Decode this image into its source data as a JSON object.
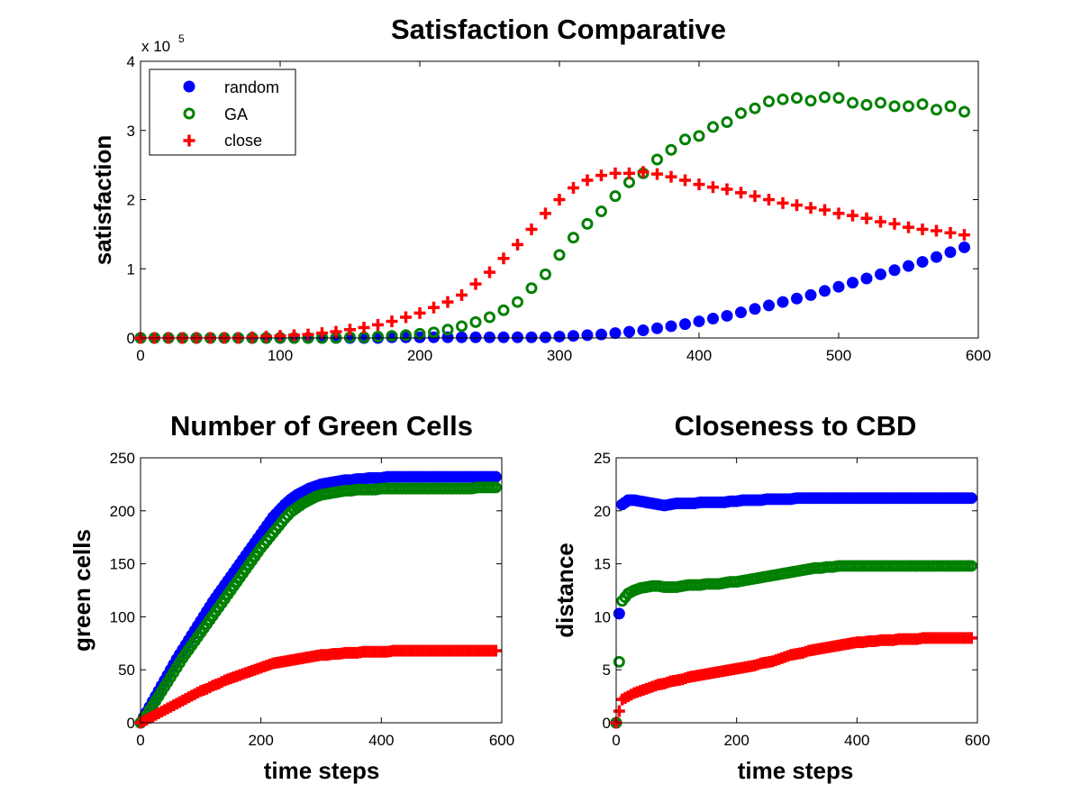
{
  "figure": {
    "colors": {
      "random": "#0000ff",
      "GA": "#008000",
      "close": "#ff0000"
    },
    "markers": {
      "random": "filled-circle",
      "GA": "open-circle",
      "close": "plus"
    }
  },
  "chart_data": [
    {
      "type": "scatter",
      "title": "Satisfaction Comparative",
      "xlabel": "",
      "ylabel": "satisfaction",
      "exponent_label": "x 10",
      "exponent_power": "5",
      "xlim": [
        0,
        600
      ],
      "ylim": [
        0,
        4
      ],
      "xticks": [
        "0",
        "100",
        "200",
        "300",
        "400",
        "500",
        "600"
      ],
      "yticks": [
        "0",
        "1",
        "2",
        "3",
        "4"
      ],
      "legend": {
        "position": "top-left",
        "entries": [
          "random",
          "GA",
          "close"
        ]
      },
      "x": [
        0,
        10,
        20,
        30,
        40,
        50,
        60,
        70,
        80,
        90,
        100,
        110,
        120,
        130,
        140,
        150,
        160,
        170,
        180,
        190,
        200,
        210,
        220,
        230,
        240,
        250,
        260,
        270,
        280,
        290,
        300,
        310,
        320,
        330,
        340,
        350,
        360,
        370,
        380,
        390,
        400,
        410,
        420,
        430,
        440,
        450,
        460,
        470,
        480,
        490,
        500,
        510,
        520,
        530,
        540,
        550,
        560,
        570,
        580,
        590
      ],
      "series": [
        {
          "name": "random",
          "values": [
            0,
            0,
            0,
            0,
            0,
            0,
            0,
            0,
            0,
            0,
            0,
            0,
            0,
            0,
            0,
            0,
            0,
            0,
            0.01,
            0.01,
            0.01,
            0.01,
            0.01,
            0.01,
            0.01,
            0.01,
            0.01,
            0.01,
            0.01,
            0.01,
            0.02,
            0.03,
            0.04,
            0.05,
            0.07,
            0.09,
            0.11,
            0.14,
            0.17,
            0.2,
            0.24,
            0.28,
            0.32,
            0.37,
            0.42,
            0.47,
            0.52,
            0.57,
            0.62,
            0.68,
            0.74,
            0.8,
            0.86,
            0.92,
            0.98,
            1.04,
            1.1,
            1.17,
            1.24,
            1.31
          ]
        },
        {
          "name": "GA",
          "values": [
            0,
            0,
            0,
            0,
            0,
            0,
            0,
            0,
            0,
            0,
            0,
            0,
            0,
            0,
            0,
            0.01,
            0.01,
            0.02,
            0.03,
            0.04,
            0.06,
            0.08,
            0.12,
            0.17,
            0.23,
            0.3,
            0.4,
            0.52,
            0.72,
            0.92,
            1.2,
            1.45,
            1.65,
            1.83,
            2.05,
            2.25,
            2.38,
            2.58,
            2.72,
            2.87,
            2.92,
            3.05,
            3.12,
            3.25,
            3.32,
            3.42,
            3.45,
            3.47,
            3.43,
            3.48,
            3.47,
            3.4,
            3.37,
            3.4,
            3.35,
            3.35,
            3.38,
            3.3,
            3.35,
            3.27
          ]
        },
        {
          "name": "close",
          "values": [
            0,
            0,
            0,
            0,
            0,
            0,
            0,
            0,
            0.01,
            0.02,
            0.03,
            0.04,
            0.05,
            0.07,
            0.09,
            0.12,
            0.15,
            0.19,
            0.24,
            0.3,
            0.36,
            0.44,
            0.52,
            0.62,
            0.78,
            0.95,
            1.15,
            1.35,
            1.57,
            1.8,
            2.0,
            2.17,
            2.28,
            2.35,
            2.38,
            2.38,
            2.4,
            2.37,
            2.33,
            2.28,
            2.22,
            2.18,
            2.15,
            2.1,
            2.05,
            2.0,
            1.95,
            1.92,
            1.88,
            1.85,
            1.8,
            1.77,
            1.73,
            1.68,
            1.65,
            1.6,
            1.57,
            1.55,
            1.52,
            1.49
          ]
        }
      ]
    },
    {
      "type": "scatter",
      "title": "Number of Green Cells",
      "xlabel": "time steps",
      "ylabel": "green cells",
      "xlim": [
        0,
        600
      ],
      "ylim": [
        0,
        250
      ],
      "xticks": [
        "0",
        "200",
        "400",
        "600"
      ],
      "yticks": [
        "0",
        "50",
        "100",
        "150",
        "200",
        "250"
      ],
      "x": [
        0,
        10,
        20,
        30,
        40,
        50,
        60,
        70,
        80,
        90,
        100,
        110,
        120,
        130,
        140,
        150,
        160,
        170,
        180,
        190,
        200,
        210,
        220,
        230,
        240,
        250,
        260,
        270,
        280,
        290,
        300,
        310,
        320,
        330,
        340,
        350,
        360,
        370,
        380,
        390,
        400,
        410,
        420,
        430,
        440,
        450,
        460,
        470,
        480,
        490,
        500,
        510,
        520,
        530,
        540,
        550,
        560,
        570,
        580,
        590
      ],
      "series": [
        {
          "name": "random",
          "values": [
            0,
            10,
            20,
            30,
            40,
            50,
            60,
            69,
            78,
            87,
            96,
            105,
            114,
            122,
            130,
            138,
            146,
            154,
            162,
            170,
            178,
            186,
            194,
            200,
            206,
            211,
            215,
            218,
            221,
            223,
            225,
            226,
            227,
            228,
            229,
            229,
            230,
            230,
            231,
            231,
            231,
            232,
            232,
            232,
            232,
            232,
            232,
            232,
            232,
            232,
            232,
            232,
            232,
            232,
            232,
            232,
            232,
            232,
            232,
            232
          ]
        },
        {
          "name": "GA",
          "values": [
            0,
            7,
            16,
            25,
            34,
            43,
            52,
            61,
            69,
            77,
            85,
            93,
            101,
            109,
            117,
            125,
            133,
            141,
            149,
            157,
            165,
            172,
            179,
            186,
            193,
            199,
            203,
            207,
            210,
            213,
            215,
            216,
            217,
            218,
            219,
            219,
            220,
            220,
            220,
            220,
            221,
            221,
            221,
            221,
            221,
            221,
            221,
            221,
            221,
            221,
            221,
            221,
            221,
            221,
            221,
            221,
            222,
            222,
            222,
            222
          ]
        },
        {
          "name": "close",
          "values": [
            0,
            3,
            6,
            9,
            12,
            15,
            18,
            21,
            24,
            27,
            30,
            32,
            35,
            37,
            40,
            42,
            44,
            46,
            48,
            50,
            52,
            54,
            56,
            57,
            58,
            59,
            60,
            61,
            62,
            63,
            64,
            64,
            65,
            65,
            66,
            66,
            66,
            67,
            67,
            67,
            67,
            67,
            68,
            68,
            68,
            68,
            68,
            68,
            68,
            68,
            68,
            68,
            68,
            68,
            68,
            68,
            68,
            68,
            68,
            68
          ]
        }
      ]
    },
    {
      "type": "scatter",
      "title": "Closeness to CBD",
      "xlabel": "time steps",
      "ylabel": "distance",
      "xlim": [
        0,
        600
      ],
      "ylim": [
        0,
        25
      ],
      "xticks": [
        "0",
        "200",
        "400",
        "600"
      ],
      "yticks": [
        "0",
        "5",
        "10",
        "15",
        "20",
        "25"
      ],
      "x": [
        0,
        10,
        20,
        30,
        40,
        50,
        60,
        70,
        80,
        90,
        100,
        110,
        120,
        130,
        140,
        150,
        160,
        170,
        180,
        190,
        200,
        210,
        220,
        230,
        240,
        250,
        260,
        270,
        280,
        290,
        300,
        310,
        320,
        330,
        340,
        350,
        360,
        370,
        380,
        390,
        400,
        410,
        420,
        430,
        440,
        450,
        460,
        470,
        480,
        490,
        500,
        510,
        520,
        530,
        540,
        550,
        560,
        570,
        580,
        590
      ],
      "series": [
        {
          "name": "random",
          "values": [
            0,
            20.6,
            21.0,
            21.0,
            20.9,
            20.8,
            20.7,
            20.6,
            20.5,
            20.6,
            20.7,
            20.7,
            20.7,
            20.7,
            20.8,
            20.8,
            20.8,
            20.8,
            20.8,
            20.9,
            20.9,
            21.0,
            21.0,
            21.0,
            21.0,
            21.1,
            21.1,
            21.1,
            21.1,
            21.1,
            21.2,
            21.2,
            21.2,
            21.2,
            21.2,
            21.2,
            21.2,
            21.2,
            21.2,
            21.2,
            21.2,
            21.2,
            21.2,
            21.2,
            21.2,
            21.2,
            21.2,
            21.2,
            21.2,
            21.2,
            21.2,
            21.2,
            21.2,
            21.2,
            21.2,
            21.2,
            21.2,
            21.2,
            21.2,
            21.2
          ]
        },
        {
          "name": "GA",
          "values": [
            0,
            11.5,
            12.2,
            12.5,
            12.7,
            12.8,
            12.9,
            12.9,
            12.8,
            12.8,
            12.8,
            12.9,
            13.0,
            13.0,
            13.0,
            13.1,
            13.1,
            13.1,
            13.2,
            13.3,
            13.3,
            13.4,
            13.5,
            13.6,
            13.7,
            13.8,
            13.9,
            14.0,
            14.1,
            14.2,
            14.3,
            14.4,
            14.5,
            14.6,
            14.6,
            14.7,
            14.7,
            14.8,
            14.8,
            14.8,
            14.8,
            14.8,
            14.8,
            14.8,
            14.8,
            14.8,
            14.8,
            14.8,
            14.8,
            14.8,
            14.8,
            14.8,
            14.8,
            14.8,
            14.8,
            14.8,
            14.8,
            14.8,
            14.8,
            14.8
          ]
        },
        {
          "name": "close",
          "values": [
            0,
            2.2,
            2.5,
            2.8,
            3.0,
            3.2,
            3.4,
            3.6,
            3.7,
            3.9,
            4.0,
            4.1,
            4.3,
            4.4,
            4.5,
            4.6,
            4.7,
            4.8,
            4.9,
            5.0,
            5.1,
            5.2,
            5.3,
            5.4,
            5.6,
            5.7,
            5.8,
            6.0,
            6.2,
            6.4,
            6.5,
            6.6,
            6.8,
            6.9,
            7.0,
            7.1,
            7.2,
            7.3,
            7.4,
            7.5,
            7.6,
            7.6,
            7.7,
            7.7,
            7.8,
            7.8,
            7.8,
            7.9,
            7.9,
            7.9,
            7.9,
            8.0,
            8.0,
            8.0,
            8.0,
            8.0,
            8.0,
            8.0,
            8.0,
            8.0
          ]
        }
      ]
    }
  ]
}
